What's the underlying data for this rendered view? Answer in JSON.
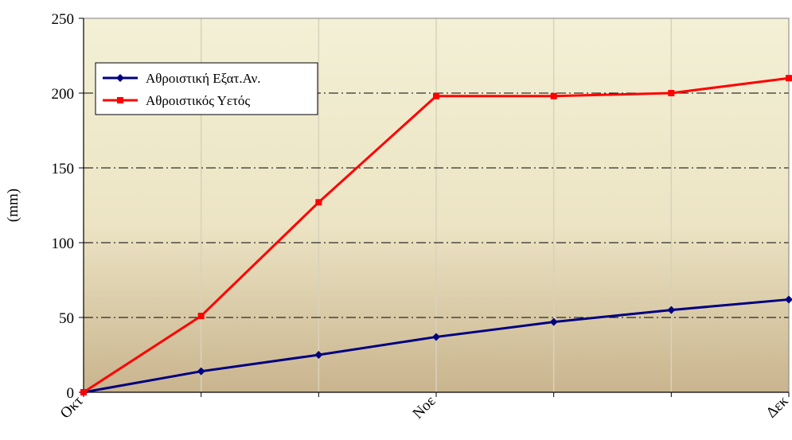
{
  "chart_data": {
    "type": "line",
    "title": "",
    "xlabel": "",
    "ylabel": "(mm)",
    "ylim": [
      0,
      250
    ],
    "yticks": [
      0,
      50,
      100,
      150,
      200,
      250
    ],
    "x_tick_labels": [
      {
        "label": "Οκτ",
        "index": 0
      },
      {
        "label": "Νοε",
        "index": 3
      },
      {
        "label": "Δεκ",
        "index": 6
      }
    ],
    "point_count": 7,
    "grid": "horizontal dash-dot",
    "legend": "top-left",
    "series": [
      {
        "name": "Αθροιστική Εξατ.Αν.",
        "color": "#000080",
        "marker": "diamond",
        "values": [
          0,
          14,
          25,
          37,
          47,
          55,
          62
        ]
      },
      {
        "name": "Αθροιστικός Υετός",
        "color": "#ff0000",
        "marker": "square",
        "values": [
          0,
          51,
          127,
          198,
          198,
          200,
          210
        ]
      }
    ]
  }
}
